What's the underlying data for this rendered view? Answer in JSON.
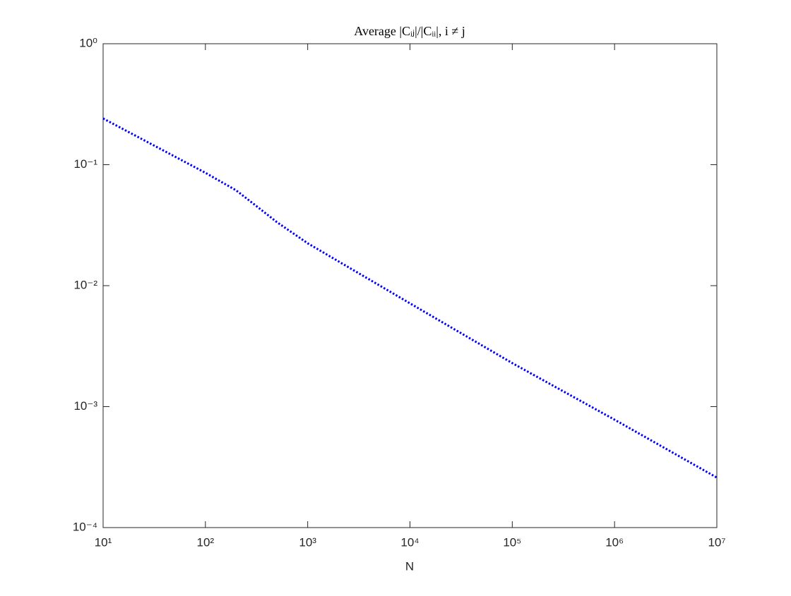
{
  "chart_data": {
    "type": "line",
    "title": "Average |Cᵢⱼ|/|Cᵢᵢ|, i ≠ j",
    "x_label": "N",
    "xscale": "log",
    "yscale": "log",
    "xlim": [
      10,
      10000000
    ],
    "ylim": [
      0.0001,
      1
    ],
    "xticks": [
      {
        "value": 10,
        "label": "10¹"
      },
      {
        "value": 100,
        "label": "10²"
      },
      {
        "value": 1000,
        "label": "10³"
      },
      {
        "value": 10000,
        "label": "10⁴"
      },
      {
        "value": 100000,
        "label": "10⁵"
      },
      {
        "value": 1000000,
        "label": "10⁶"
      },
      {
        "value": 10000000,
        "label": "10⁷"
      }
    ],
    "yticks": [
      {
        "value": 0.0001,
        "label": "10⁻⁴"
      },
      {
        "value": 0.001,
        "label": "10⁻³"
      },
      {
        "value": 0.01,
        "label": "10⁻²"
      },
      {
        "value": 0.1,
        "label": "10⁻¹"
      },
      {
        "value": 1,
        "label": "10⁰"
      }
    ],
    "grid": false,
    "series": [
      {
        "color": "#0000ff",
        "x": [
          10,
          100,
          200,
          300,
          500,
          1000,
          10000,
          100000,
          1000000,
          10000000
        ],
        "values": [
          0.241,
          0.0857,
          0.0613,
          0.047,
          0.0335,
          0.0224,
          0.00714,
          0.00229,
          0.00078,
          0.000259
        ]
      }
    ]
  }
}
